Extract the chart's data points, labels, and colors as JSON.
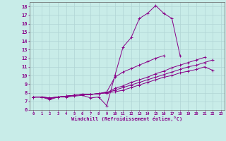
{
  "xlabel": "Windchill (Refroidissement éolien,°C)",
  "background_color": "#c8ece8",
  "grid_color": "#b0d4d4",
  "line_color": "#880088",
  "x_values": [
    0,
    1,
    2,
    3,
    4,
    5,
    6,
    7,
    8,
    9,
    10,
    11,
    12,
    13,
    14,
    15,
    16,
    17,
    18,
    19,
    20,
    21,
    22,
    23
  ],
  "line1": [
    7.5,
    7.5,
    7.2,
    7.5,
    7.5,
    7.6,
    7.7,
    7.4,
    7.5,
    6.5,
    10.0,
    13.3,
    14.4,
    16.6,
    17.2,
    18.1,
    17.2,
    16.6,
    12.3,
    null,
    null,
    null,
    null,
    null
  ],
  "line2": [
    7.5,
    7.5,
    7.3,
    7.5,
    7.6,
    7.7,
    7.8,
    7.8,
    7.9,
    8.1,
    9.8,
    10.4,
    10.8,
    11.2,
    11.6,
    12.0,
    12.3,
    null,
    null,
    null,
    null,
    null,
    null,
    null
  ],
  "line3": [
    7.5,
    7.5,
    7.4,
    7.5,
    7.6,
    7.7,
    7.8,
    7.8,
    7.9,
    8.0,
    8.5,
    8.8,
    9.2,
    9.5,
    9.8,
    10.2,
    10.5,
    10.9,
    11.2,
    11.5,
    11.8,
    12.1,
    null,
    null
  ],
  "line4": [
    7.5,
    7.5,
    7.4,
    7.5,
    7.6,
    7.7,
    7.8,
    7.8,
    7.9,
    8.0,
    8.3,
    8.6,
    8.9,
    9.2,
    9.5,
    9.8,
    10.1,
    10.4,
    10.7,
    11.0,
    11.2,
    11.5,
    11.8,
    null
  ],
  "line5": [
    7.5,
    7.5,
    7.4,
    7.5,
    7.6,
    7.7,
    7.8,
    7.8,
    7.9,
    8.0,
    8.1,
    8.3,
    8.6,
    8.9,
    9.2,
    9.5,
    9.8,
    10.0,
    10.3,
    10.5,
    10.7,
    11.0,
    10.6,
    null
  ],
  "ylim": [
    6,
    18.5
  ],
  "xlim": [
    -0.5,
    23.5
  ],
  "yticks": [
    6,
    7,
    8,
    9,
    10,
    11,
    12,
    13,
    14,
    15,
    16,
    17,
    18
  ],
  "xticks": [
    0,
    1,
    2,
    3,
    4,
    5,
    6,
    7,
    8,
    9,
    10,
    11,
    12,
    13,
    14,
    15,
    16,
    17,
    18,
    19,
    20,
    21,
    22,
    23
  ]
}
